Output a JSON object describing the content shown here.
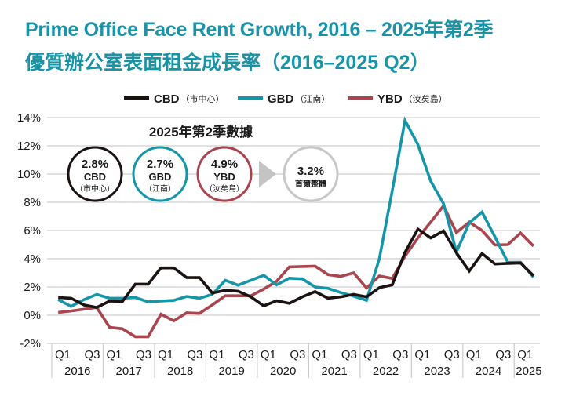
{
  "title": {
    "line1": "Prime Office Face Rent Growth, 2016 – 2025年第2季",
    "line2": "優質辦公室表面租金成長率（2016–2025 Q2）"
  },
  "summary": {
    "heading": "2025年第2季數據",
    "items": [
      {
        "value": "2.8%",
        "name": "CBD",
        "sub": "（市中心）",
        "color": "#1a1311"
      },
      {
        "value": "2.7%",
        "name": "GBD",
        "sub": "（江南）",
        "color": "#1596a8"
      },
      {
        "value": "4.9%",
        "name": "YBD",
        "sub": "（汝矣島）",
        "color": "#a8454f"
      }
    ],
    "overall": {
      "value": "3.2%",
      "label": "首爾整體",
      "color": "#c8c8c8"
    },
    "arrow_color": "#c4c4c4"
  },
  "chart_data": {
    "type": "line",
    "title": "Prime Office Face Rent Growth, 2016 – 2025年第2季",
    "xlabel": "",
    "ylabel": "",
    "ylim": [
      -2,
      14
    ],
    "yticks": [
      -2,
      0,
      2,
      4,
      6,
      8,
      10,
      12,
      14
    ],
    "ytick_labels": [
      "-2%",
      "0%",
      "2%",
      "4%",
      "6%",
      "8%",
      "10%",
      "12%",
      "14%"
    ],
    "grid": true,
    "legend_position": "top-center",
    "years": [
      "2016",
      "2017",
      "2018",
      "2019",
      "2020",
      "2021",
      "2022",
      "2023",
      "2024",
      "2025"
    ],
    "quarter_tick_labels": [
      "Q1",
      "Q3"
    ],
    "x": [
      "2016Q1",
      "2016Q2",
      "2016Q3",
      "2016Q4",
      "2017Q1",
      "2017Q2",
      "2017Q3",
      "2017Q4",
      "2018Q1",
      "2018Q2",
      "2018Q3",
      "2018Q4",
      "2019Q1",
      "2019Q2",
      "2019Q3",
      "2019Q4",
      "2020Q1",
      "2020Q2",
      "2020Q3",
      "2020Q4",
      "2021Q1",
      "2021Q2",
      "2021Q3",
      "2021Q4",
      "2022Q1",
      "2022Q2",
      "2022Q3",
      "2022Q4",
      "2023Q1",
      "2023Q2",
      "2023Q3",
      "2023Q4",
      "2024Q1",
      "2024Q2",
      "2024Q3",
      "2024Q4",
      "2025Q1",
      "2025Q2"
    ],
    "series": [
      {
        "name": "CBD",
        "label_suffix": "（市中心）",
        "color": "#1a1311",
        "values": [
          1.25,
          1.2,
          0.73,
          0.55,
          1.0,
          0.97,
          2.2,
          2.2,
          3.35,
          3.35,
          2.66,
          2.66,
          1.57,
          1.76,
          1.7,
          1.3,
          0.66,
          1.02,
          0.84,
          1.3,
          1.67,
          1.2,
          1.3,
          1.48,
          1.3,
          1.95,
          2.15,
          4.45,
          6.1,
          5.47,
          5.97,
          4.42,
          3.12,
          4.37,
          3.63,
          3.67,
          3.7,
          2.8
        ]
      },
      {
        "name": "GBD",
        "label_suffix": "（江南）",
        "color": "#1596a8",
        "values": [
          1.1,
          0.63,
          1.1,
          1.47,
          1.2,
          1.2,
          1.25,
          0.95,
          1.0,
          1.05,
          1.33,
          1.2,
          1.48,
          2.47,
          2.13,
          2.47,
          2.82,
          2.15,
          2.62,
          2.57,
          2.0,
          1.9,
          1.6,
          1.35,
          1.05,
          4.0,
          8.8,
          13.8,
          12.1,
          9.5,
          7.9,
          4.48,
          6.55,
          7.3,
          5.55,
          3.75,
          3.75,
          2.7
        ]
      },
      {
        "name": "YBD",
        "label_suffix": "（汝矣島）",
        "color": "#a8454f",
        "values": [
          0.2,
          0.3,
          0.42,
          0.55,
          -0.86,
          -0.96,
          -1.52,
          -1.52,
          0.07,
          -0.4,
          0.17,
          0.13,
          0.73,
          1.38,
          1.38,
          1.38,
          1.85,
          2.4,
          3.42,
          3.45,
          3.47,
          2.87,
          2.75,
          3.0,
          1.93,
          2.78,
          2.6,
          4.18,
          5.48,
          6.6,
          7.75,
          5.85,
          6.6,
          6.0,
          4.98,
          5.0,
          5.82,
          4.9
        ]
      }
    ]
  }
}
